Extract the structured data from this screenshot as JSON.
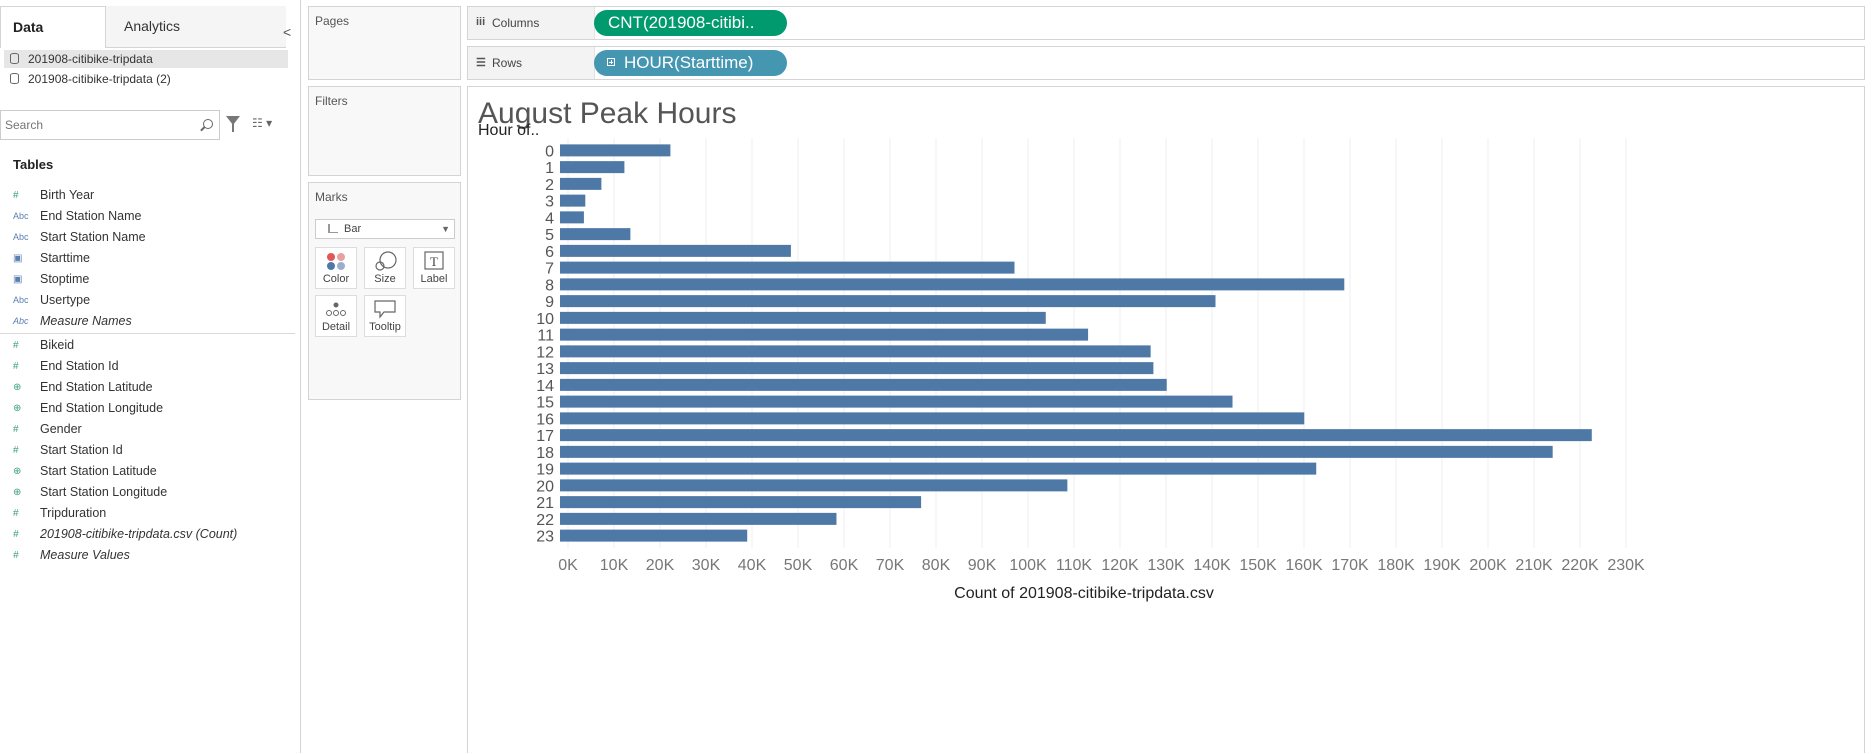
{
  "data_pane": {
    "tabs": [
      {
        "label": "Data"
      },
      {
        "label": "Analytics"
      }
    ],
    "collapse_glyph": "<",
    "data_sources": [
      {
        "label": "201908-citibike-tripdata"
      },
      {
        "label": "201908-citibike-tripdata (2)"
      }
    ],
    "search": {
      "placeholder": "Search"
    },
    "tables_heading": "Tables",
    "dimension_fields": [
      {
        "label": "Birth Year",
        "icon": "number-icon",
        "glyph": "#"
      },
      {
        "label": "End Station Name",
        "icon": "string-icon",
        "glyph": "Abc"
      },
      {
        "label": "Start Station Name",
        "icon": "string-icon",
        "glyph": "Abc"
      },
      {
        "label": "Starttime",
        "icon": "datetime-icon",
        "glyph": "▣"
      },
      {
        "label": "Stoptime",
        "icon": "datetime-icon",
        "glyph": "▣"
      },
      {
        "label": "Usertype",
        "icon": "string-icon",
        "glyph": "Abc"
      },
      {
        "label": "Measure Names",
        "icon": "string-icon",
        "glyph": "Abc"
      }
    ],
    "measure_fields": [
      {
        "label": "Bikeid",
        "icon": "number-icon",
        "glyph": "#"
      },
      {
        "label": "End Station Id",
        "icon": "number-icon",
        "glyph": "#"
      },
      {
        "label": "End Station Latitude",
        "icon": "globe-icon",
        "glyph": "⊕"
      },
      {
        "label": "End Station Longitude",
        "icon": "globe-icon",
        "glyph": "⊕"
      },
      {
        "label": "Gender",
        "icon": "number-icon",
        "glyph": "#"
      },
      {
        "label": "Start Station Id",
        "icon": "number-icon",
        "glyph": "#"
      },
      {
        "label": "Start Station Latitude",
        "icon": "globe-icon",
        "glyph": "⊕"
      },
      {
        "label": "Start Station Longitude",
        "icon": "globe-icon",
        "glyph": "⊕"
      },
      {
        "label": "Tripduration",
        "icon": "number-icon",
        "glyph": "#"
      },
      {
        "label": "201908-citibike-tripdata.csv (Count)",
        "icon": "number-icon",
        "glyph": "#"
      },
      {
        "label": "Measure Values",
        "icon": "number-icon",
        "glyph": "#"
      }
    ]
  },
  "cards": {
    "pages_title": "Pages",
    "filters_title": "Filters",
    "marks_title": "Marks",
    "mark_type": "Bar",
    "mark_buttons": [
      {
        "label": "Color"
      },
      {
        "label": "Size"
      },
      {
        "label": "Label"
      },
      {
        "label": "Detail"
      },
      {
        "label": "Tooltip"
      }
    ]
  },
  "shelves": {
    "columns_label": "Columns",
    "columns_pill": "CNT(201908-citibi..",
    "rows_label": "Rows",
    "rows_pill": "HOUR(Starttime)"
  },
  "view": {
    "sheet_title": "August Peak Hours"
  },
  "colors": {
    "bar": "#4e79a7",
    "columns_pill": "#009a6e",
    "rows_pill": "#4596b0"
  },
  "chart_data": {
    "type": "bar",
    "orientation": "horizontal",
    "title": "August Peak Hours",
    "ylabel": "Hour of..",
    "xlabel": "Count of 201908-citibike-tripdata.csv",
    "categories": [
      "0",
      "1",
      "2",
      "3",
      "4",
      "5",
      "6",
      "7",
      "8",
      "9",
      "10",
      "11",
      "12",
      "13",
      "14",
      "15",
      "16",
      "17",
      "18",
      "19",
      "20",
      "21",
      "22",
      "23"
    ],
    "values": [
      24000,
      14000,
      9000,
      5500,
      5200,
      15300,
      50200,
      98800,
      170500,
      142500,
      105600,
      114800,
      128400,
      129000,
      131900,
      146200,
      161800,
      224300,
      215800,
      164400,
      110300,
      78500,
      60100,
      40700
    ],
    "xlim": [
      0,
      230000
    ],
    "x_ticks": [
      "0K",
      "10K",
      "20K",
      "30K",
      "40K",
      "50K",
      "60K",
      "70K",
      "80K",
      "90K",
      "100K",
      "110K",
      "120K",
      "130K",
      "140K",
      "150K",
      "160K",
      "170K",
      "180K",
      "190K",
      "200K",
      "210K",
      "220K",
      "230K"
    ],
    "grid": "vertical",
    "legend": "none"
  }
}
